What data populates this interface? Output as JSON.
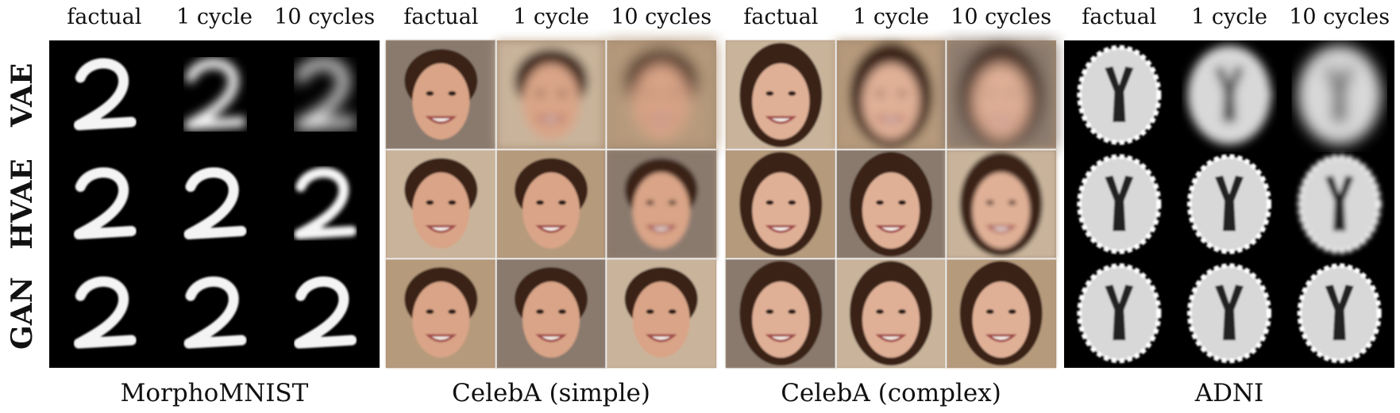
{
  "panels": [
    {
      "name": "MorphoMNIST",
      "columns": [
        "factual",
        "1 cycle",
        "10 cycles"
      ]
    },
    {
      "name": "CelebA (simple)",
      "columns": [
        "factual",
        "1 cycle",
        "10 cycles"
      ]
    },
    {
      "name": "CelebA (complex)",
      "columns": [
        "factual",
        "1 cycle",
        "10 cycles"
      ]
    },
    {
      "name": "ADNI",
      "columns": [
        "factual",
        "1 cycle",
        "10 cycles"
      ]
    }
  ],
  "rows": [
    "VAE",
    "HVAE",
    "GAN"
  ]
}
